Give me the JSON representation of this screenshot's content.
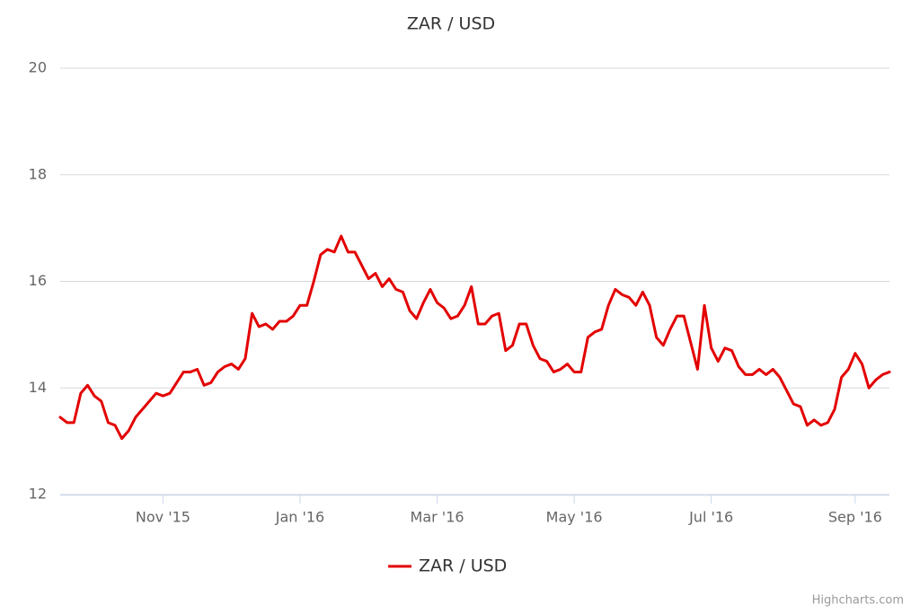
{
  "chart_data": {
    "type": "line",
    "title": "ZAR / USD",
    "categories": [
      null,
      null,
      null,
      null,
      null,
      null,
      null,
      null,
      null,
      null,
      null,
      null,
      null,
      null,
      null,
      "Nov '15",
      null,
      null,
      null,
      null,
      null,
      null,
      null,
      null,
      null,
      null,
      null,
      null,
      null,
      null,
      null,
      null,
      null,
      null,
      null,
      "Jan '16",
      null,
      null,
      null,
      null,
      null,
      null,
      null,
      null,
      null,
      null,
      null,
      null,
      null,
      null,
      null,
      null,
      null,
      null,
      null,
      "Mar '16",
      null,
      null,
      null,
      null,
      null,
      null,
      null,
      null,
      null,
      null,
      null,
      null,
      null,
      null,
      null,
      null,
      null,
      null,
      null,
      "May '16",
      null,
      null,
      null,
      null,
      null,
      null,
      null,
      null,
      null,
      null,
      null,
      null,
      null,
      null,
      null,
      null,
      null,
      null,
      null,
      "Jul '16",
      null,
      null,
      null,
      null,
      null,
      null,
      null,
      null,
      null,
      null,
      null,
      null,
      null,
      null,
      null,
      null,
      null,
      null,
      null,
      null,
      "Sep '16",
      null,
      null,
      null,
      null,
      null
    ],
    "series": [
      {
        "name": "ZAR / USD",
        "color": "#e30000",
        "values": [
          13.45,
          13.35,
          13.35,
          13.9,
          14.05,
          13.85,
          13.75,
          13.35,
          13.3,
          13.05,
          13.2,
          13.45,
          13.6,
          13.75,
          13.9,
          13.85,
          13.9,
          14.1,
          14.3,
          14.3,
          14.35,
          14.05,
          14.1,
          14.3,
          14.4,
          14.45,
          14.35,
          14.55,
          15.4,
          15.15,
          15.2,
          15.1,
          15.25,
          15.25,
          15.35,
          15.55,
          15.55,
          16.0,
          16.5,
          16.6,
          16.55,
          16.85,
          16.55,
          16.55,
          16.3,
          16.05,
          16.15,
          15.9,
          16.05,
          15.85,
          15.8,
          15.45,
          15.3,
          15.6,
          15.85,
          15.6,
          15.5,
          15.3,
          15.35,
          15.55,
          15.9,
          15.2,
          15.2,
          15.35,
          15.4,
          14.7,
          14.8,
          15.2,
          15.2,
          14.8,
          14.55,
          14.5,
          14.3,
          14.35,
          14.45,
          14.3,
          14.3,
          14.95,
          15.05,
          15.1,
          15.55,
          15.85,
          15.75,
          15.7,
          15.55,
          15.8,
          15.55,
          14.95,
          14.8,
          15.1,
          15.35,
          15.35,
          14.85,
          14.35,
          15.55,
          14.75,
          14.5,
          14.75,
          14.7,
          14.4,
          14.25,
          14.25,
          14.35,
          14.25,
          14.35,
          14.2,
          13.95,
          13.7,
          13.65,
          13.3,
          13.4,
          13.3,
          13.35,
          13.6,
          14.2,
          14.35,
          14.65,
          14.45,
          14.0,
          14.15,
          14.25,
          14.3
        ]
      }
    ],
    "ylim": [
      12,
      20
    ],
    "yticks": [
      12,
      14,
      16,
      18,
      20
    ],
    "grid": true,
    "legend": "bottom",
    "credits": "Highcharts.com"
  }
}
